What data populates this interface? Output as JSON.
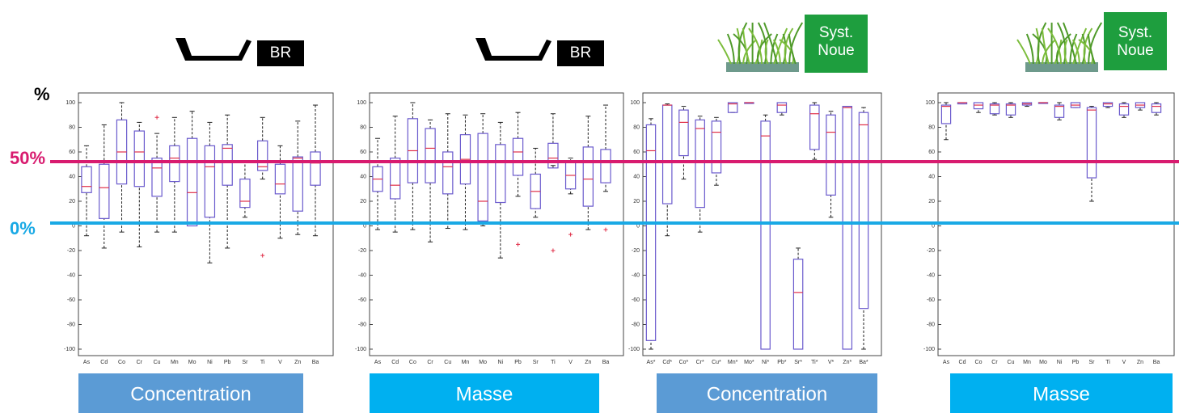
{
  "page": {
    "axis_unit": "%",
    "reference_lines": [
      {
        "label": "50%",
        "color": "#d81b6f"
      },
      {
        "label": "0%",
        "color": "#19a9e5"
      }
    ]
  },
  "chart_data": [
    {
      "type": "box",
      "badge_lines": [
        "BR"
      ],
      "badge_color": "#000000",
      "caption": "Concentration",
      "caption_color": "#5b9bd5",
      "categories": [
        "As",
        "Cd",
        "Co",
        "Cr",
        "Cu",
        "Mn",
        "Mo",
        "Ni",
        "Pb",
        "Sr",
        "Ti",
        "V",
        "Zn",
        "Ba"
      ],
      "whisker_low": [
        -8,
        -18,
        -5,
        -17,
        -5,
        -5,
        0,
        -30,
        -18,
        7,
        38,
        -10,
        -7,
        -8
      ],
      "q1": [
        27,
        6,
        34,
        32,
        24,
        36,
        0,
        7,
        33,
        15,
        45,
        26,
        12,
        33
      ],
      "median": [
        32,
        31,
        60,
        60,
        47,
        55,
        27,
        48,
        63,
        20,
        48,
        34,
        55,
        51
      ],
      "q3": [
        48,
        50,
        86,
        77,
        55,
        65,
        71,
        65,
        66,
        38,
        69,
        50,
        56,
        60
      ],
      "whisker_high": [
        65,
        82,
        100,
        84,
        75,
        88,
        93,
        84,
        90,
        53,
        88,
        65,
        85,
        98
      ],
      "outliers": [
        [],
        [],
        [],
        [],
        [
          88
        ],
        [],
        [],
        [],
        [],
        [],
        [
          -24
        ],
        [],
        [],
        []
      ],
      "box_color": "#6a5acd",
      "median_color": "#e0304a",
      "ylim": [
        -100,
        100
      ],
      "yticks": [
        100,
        80,
        60,
        40,
        20,
        0,
        -20,
        -40,
        -60,
        -80,
        -100
      ]
    },
    {
      "type": "box",
      "badge_lines": [
        "BR"
      ],
      "badge_color": "#000000",
      "caption": "Masse",
      "caption_color": "#00b0f0",
      "categories": [
        "As",
        "Cd",
        "Co",
        "Cr",
        "Cu",
        "Mn",
        "Mo",
        "Ni",
        "Pb",
        "Sr",
        "Ti",
        "V",
        "Zn",
        "Ba"
      ],
      "whisker_low": [
        -3,
        -5,
        -3,
        -13,
        -2,
        -3,
        0,
        -26,
        24,
        7,
        49,
        26,
        -3,
        28
      ],
      "q1": [
        28,
        22,
        35,
        35,
        26,
        34,
        4,
        19,
        41,
        14,
        47,
        30,
        16,
        35
      ],
      "median": [
        38,
        33,
        61,
        63,
        48,
        54,
        20,
        52,
        60,
        28,
        55,
        41,
        38,
        52
      ],
      "q3": [
        48,
        55,
        87,
        79,
        60,
        74,
        75,
        66,
        71,
        42,
        67,
        52,
        64,
        62
      ],
      "whisker_high": [
        71,
        89,
        100,
        86,
        91,
        90,
        91,
        84,
        92,
        63,
        91,
        55,
        89,
        98
      ],
      "outliers": [
        [],
        [],
        [],
        [],
        [],
        [],
        [],
        [],
        [
          -15
        ],
        [],
        [
          -20
        ],
        [
          -7
        ],
        [],
        [
          -3
        ]
      ],
      "box_color": "#6a5acd",
      "median_color": "#e0304a",
      "ylim": [
        -100,
        100
      ],
      "yticks": [
        100,
        80,
        60,
        40,
        20,
        0,
        -20,
        -40,
        -60,
        -80,
        -100
      ]
    },
    {
      "type": "box",
      "badge_lines": [
        "Syst.",
        "Noue"
      ],
      "badge_color": "#1e9e3e",
      "caption": "Concentration",
      "caption_color": "#5b9bd5",
      "categories": [
        "As*",
        "Cd*",
        "Co*",
        "Cr*",
        "Cu*",
        "Mn*",
        "Mo*",
        "Ni*",
        "Pb*",
        "Sr*",
        "Ti*",
        "V*",
        "Zn*",
        "Ba*"
      ],
      "whisker_low": [
        -100,
        -8,
        38,
        -5,
        33,
        92,
        100,
        -100,
        90,
        -100,
        54,
        7,
        -100,
        -100
      ],
      "q1": [
        -93,
        18,
        57,
        15,
        43,
        92,
        100,
        -100,
        92,
        -100,
        62,
        25,
        -100,
        -67
      ],
      "median": [
        61,
        98,
        84,
        79,
        76,
        99,
        100,
        73,
        98,
        -54,
        91,
        76,
        96,
        82
      ],
      "q3": [
        82,
        98,
        94,
        86,
        85,
        100,
        100,
        85,
        100,
        -27,
        98,
        90,
        97,
        92
      ],
      "whisker_high": [
        87,
        99,
        97,
        89,
        88,
        100,
        100,
        90,
        100,
        -18,
        100,
        93,
        97,
        96
      ],
      "outliers": [
        [],
        [],
        [],
        [],
        [],
        [],
        [],
        [],
        [],
        [],
        [],
        [],
        [],
        []
      ],
      "box_color": "#6a5acd",
      "median_color": "#e0304a",
      "ylim": [
        -100,
        100
      ],
      "yticks": [
        100,
        80,
        60,
        40,
        20,
        0,
        -20,
        -40,
        -60,
        -80,
        -100
      ]
    },
    {
      "type": "box",
      "badge_lines": [
        "Syst.",
        "Noue"
      ],
      "badge_color": "#1e9e3e",
      "caption": "Masse",
      "caption_color": "#00b0f0",
      "categories": [
        "As",
        "Cd",
        "Co",
        "Cr",
        "Cu",
        "Mn",
        "Mo",
        "Ni",
        "Pb",
        "Sr",
        "Ti",
        "V",
        "Zn",
        "Ba"
      ],
      "whisker_low": [
        70,
        99,
        92,
        90,
        88,
        97,
        100,
        86,
        96,
        20,
        96,
        88,
        94,
        90
      ],
      "q1": [
        83,
        99,
        95,
        91,
        90,
        98,
        100,
        88,
        96,
        39,
        97,
        90,
        96,
        92
      ],
      "median": [
        97,
        100,
        98,
        98,
        98,
        99,
        100,
        97,
        98,
        94,
        99,
        97,
        98,
        97
      ],
      "q3": [
        98,
        100,
        100,
        99,
        99,
        100,
        100,
        98,
        100,
        96,
        100,
        99,
        100,
        99
      ],
      "whisker_high": [
        100,
        100,
        100,
        100,
        100,
        100,
        100,
        100,
        100,
        97,
        100,
        100,
        100,
        100
      ],
      "outliers": [
        [],
        [],
        [],
        [],
        [],
        [],
        [],
        [],
        [],
        [],
        [],
        [],
        [],
        []
      ],
      "box_color": "#6a5acd",
      "median_color": "#e0304a",
      "ylim": [
        -100,
        100
      ],
      "yticks": [
        100,
        80,
        60,
        40,
        20,
        0,
        -20,
        -40,
        -60,
        -80,
        -100
      ]
    }
  ]
}
